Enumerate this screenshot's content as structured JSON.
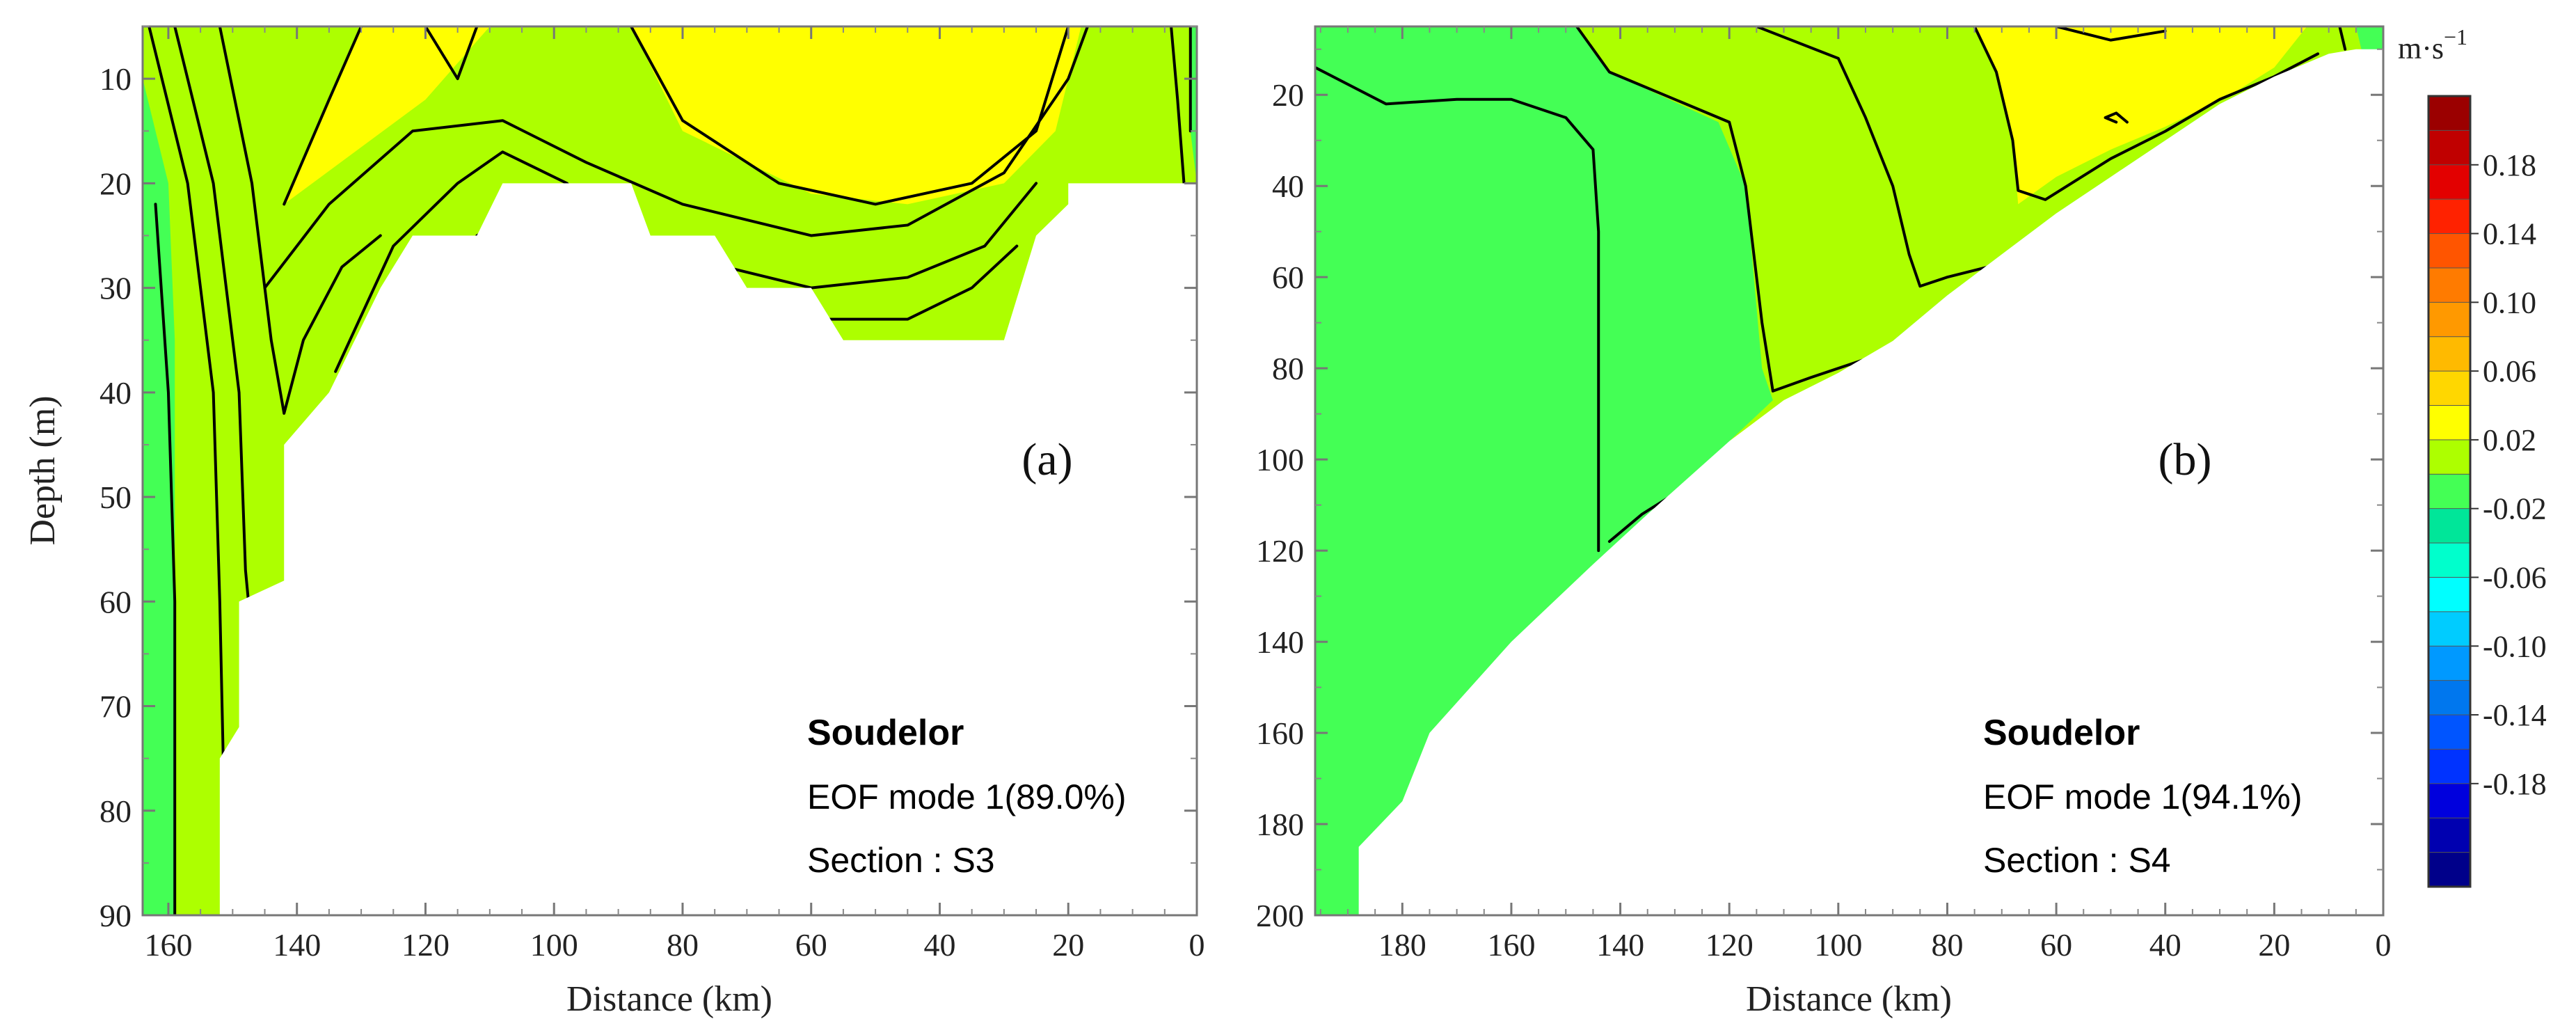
{
  "chart_data": [
    {
      "type": "heatmap",
      "panel_label": "(a)",
      "xlabel": "Distance (km)",
      "ylabel": "Depth (m)",
      "xlim": [
        164,
        0
      ],
      "ylim": [
        5,
        90
      ],
      "xticks": [
        "160",
        "140",
        "120",
        "100",
        "80",
        "60",
        "40",
        "20",
        "0"
      ],
      "xtick_values": [
        160,
        140,
        120,
        100,
        80,
        60,
        40,
        20,
        0
      ],
      "yticks": [
        "10",
        "20",
        "30",
        "40",
        "50",
        "60",
        "70",
        "80",
        "90"
      ],
      "ytick_values": [
        10,
        20,
        30,
        40,
        50,
        60,
        70,
        80,
        90
      ],
      "bottom_profile": [
        [
          164,
          90
        ],
        [
          152,
          90
        ],
        [
          152,
          75
        ],
        [
          149,
          72
        ],
        [
          149,
          60
        ],
        [
          142,
          58
        ],
        [
          142,
          45
        ],
        [
          135,
          40
        ],
        [
          127,
          30
        ],
        [
          122,
          25
        ],
        [
          112,
          25
        ],
        [
          108,
          20
        ],
        [
          88,
          20
        ],
        [
          85,
          25
        ],
        [
          75,
          25
        ],
        [
          70,
          30
        ],
        [
          60,
          30
        ],
        [
          55,
          35
        ],
        [
          30,
          35
        ],
        [
          25,
          25
        ],
        [
          20,
          22
        ],
        [
          20,
          20
        ],
        [
          0,
          20
        ]
      ],
      "regions": [
        {
          "level": "0.02 to 0.06",
          "color": "#adff00"
        },
        {
          "level": "0.06 to 0.10",
          "color": "#ffff00",
          "points": [
            [
              130,
              5
            ],
            [
              142,
              22
            ],
            [
              120,
              12
            ],
            [
              110,
              5
            ]
          ]
        },
        {
          "level": "0.06 to 0.10",
          "color": "#ffff00",
          "points": [
            [
              88,
              5
            ],
            [
              80,
              15
            ],
            [
              60,
              21
            ],
            [
              45,
              22
            ],
            [
              30,
              20
            ],
            [
              22,
              15
            ],
            [
              18,
              5
            ]
          ]
        },
        {
          "level": "-0.02 to 0.02",
          "color": "#44ff55",
          "points": [
            [
              164,
              10
            ],
            [
              160,
              20
            ],
            [
              159,
              35
            ],
            [
              159,
              90
            ],
            [
              164,
              90
            ]
          ]
        },
        {
          "level": "-0.02 to 0.02",
          "color": "#44ff55",
          "points": [
            [
              1,
              5
            ],
            [
              0,
              5
            ],
            [
              0,
              20
            ],
            [
              1,
              15
            ]
          ]
        }
      ],
      "contours": [
        [
          [
            162,
            22
          ],
          [
            160,
            40
          ],
          [
            159,
            60
          ],
          [
            159,
            90
          ]
        ],
        [
          [
            163,
            5
          ],
          [
            157,
            20
          ],
          [
            153,
            40
          ],
          [
            152,
            60
          ],
          [
            151,
            88
          ]
        ],
        [
          [
            159,
            5
          ],
          [
            153,
            20
          ],
          [
            149,
            40
          ],
          [
            148,
            57
          ],
          [
            146,
            70
          ],
          [
            148,
            75
          ]
        ],
        [
          [
            152,
            5
          ],
          [
            147,
            20
          ],
          [
            144,
            35
          ],
          [
            142,
            42
          ],
          [
            139,
            35
          ],
          [
            133,
            28
          ],
          [
            127,
            25
          ]
        ],
        [
          [
            142,
            22
          ],
          [
            135,
            12
          ],
          [
            130,
            5
          ]
        ],
        [
          [
            134,
            38
          ],
          [
            125,
            26
          ],
          [
            115,
            20
          ],
          [
            108,
            17
          ],
          [
            98,
            20
          ],
          [
            88,
            26
          ],
          [
            75,
            30
          ],
          [
            60,
            33
          ],
          [
            45,
            33
          ],
          [
            35,
            30
          ],
          [
            28,
            26
          ]
        ],
        [
          [
            112,
            25
          ],
          [
            100,
            21
          ],
          [
            90,
            24
          ],
          [
            80,
            27
          ],
          [
            60,
            30
          ],
          [
            45,
            29
          ],
          [
            33,
            26
          ],
          [
            25,
            20
          ]
        ],
        [
          [
            145,
            30
          ],
          [
            135,
            22
          ],
          [
            122,
            15
          ],
          [
            108,
            14
          ],
          [
            95,
            18
          ],
          [
            80,
            22
          ],
          [
            60,
            25
          ],
          [
            45,
            24
          ],
          [
            30,
            19
          ],
          [
            20,
            10
          ],
          [
            17,
            5
          ]
        ],
        [
          [
            120,
            5
          ],
          [
            115,
            10
          ],
          [
            112,
            5
          ]
        ],
        [
          [
            88,
            5
          ],
          [
            80,
            14
          ],
          [
            65,
            20
          ],
          [
            50,
            22
          ],
          [
            35,
            20
          ],
          [
            25,
            15
          ],
          [
            20,
            5
          ]
        ],
        [
          [
            4,
            5
          ],
          [
            3,
            12
          ],
          [
            2,
            20
          ]
        ],
        [
          [
            1,
            5
          ],
          [
            1,
            15
          ]
        ]
      ],
      "annotations": {
        "name": "Soudelor",
        "mode": "EOF mode 1(89.0%)",
        "section": "Section : S3"
      }
    },
    {
      "type": "heatmap",
      "panel_label": "(b)",
      "xlabel": "Distance (km)",
      "ylabel": "",
      "xlim": [
        196,
        0
      ],
      "ylim": [
        5,
        200
      ],
      "xticks": [
        "180",
        "160",
        "140",
        "120",
        "100",
        "80",
        "60",
        "40",
        "20",
        "0"
      ],
      "xtick_values": [
        180,
        160,
        140,
        120,
        100,
        80,
        60,
        40,
        20,
        0
      ],
      "yticks": [
        "20",
        "40",
        "60",
        "80",
        "100",
        "120",
        "140",
        "160",
        "180",
        "200"
      ],
      "ytick_values": [
        20,
        40,
        60,
        80,
        100,
        120,
        140,
        160,
        180,
        200
      ],
      "bottom_profile": [
        [
          196,
          200
        ],
        [
          188,
          200
        ],
        [
          188,
          185
        ],
        [
          180,
          175
        ],
        [
          175,
          160
        ],
        [
          160,
          140
        ],
        [
          145,
          123
        ],
        [
          135,
          112
        ],
        [
          120,
          96
        ],
        [
          110,
          87
        ],
        [
          100,
          81
        ],
        [
          90,
          74
        ],
        [
          80,
          64
        ],
        [
          70,
          55
        ],
        [
          60,
          46
        ],
        [
          50,
          38
        ],
        [
          40,
          30
        ],
        [
          30,
          22
        ],
        [
          20,
          16
        ],
        [
          10,
          11
        ],
        [
          5,
          10
        ],
        [
          0,
          10
        ]
      ],
      "regions": [
        {
          "level": "-0.02 to 0.02",
          "color": "#44ff55"
        },
        {
          "level": "0.02 to 0.06",
          "color": "#adff00",
          "points": [
            [
              148,
              5
            ],
            [
              142,
              15
            ],
            [
              122,
              26
            ],
            [
              117,
              40
            ],
            [
              114,
              80
            ],
            [
              112,
              87
            ],
            [
              120,
              96
            ],
            [
              96,
              80
            ],
            [
              80,
              64
            ],
            [
              70,
              55
            ],
            [
              60,
              46
            ],
            [
              50,
              38
            ],
            [
              40,
              30
            ],
            [
              30,
              22
            ],
            [
              20,
              16
            ],
            [
              10,
              11
            ],
            [
              4,
              10
            ],
            [
              5,
              5
            ]
          ]
        },
        {
          "level": "0.06 to 0.10",
          "color": "#ffff00",
          "points": [
            [
              75,
              5
            ],
            [
              71,
              15
            ],
            [
              68,
              30
            ],
            [
              67,
              44
            ],
            [
              60,
              38
            ],
            [
              50,
              32
            ],
            [
              40,
              27
            ],
            [
              28,
              20
            ],
            [
              20,
              14
            ],
            [
              14,
              5
            ]
          ]
        },
        {
          "level": "-0.02 to 0.02",
          "color": "#44ff55",
          "points": [
            [
              5,
              5
            ],
            [
              0,
              5
            ],
            [
              0,
              10
            ],
            [
              4,
              10
            ]
          ]
        }
      ],
      "contours": [
        [
          [
            196,
            14
          ],
          [
            183,
            22
          ],
          [
            170,
            21
          ],
          [
            160,
            21
          ],
          [
            150,
            25
          ],
          [
            145,
            32
          ],
          [
            144,
            50
          ],
          [
            144,
            90
          ],
          [
            144,
            120
          ]
        ],
        [
          [
            142,
            118
          ],
          [
            136,
            112
          ],
          [
            128,
            106
          ]
        ],
        [
          [
            148,
            5
          ],
          [
            142,
            15
          ],
          [
            120,
            26
          ],
          [
            117,
            40
          ],
          [
            114,
            70
          ],
          [
            112,
            85
          ],
          [
            105,
            82
          ],
          [
            95,
            78
          ]
        ],
        [
          [
            115,
            5
          ],
          [
            100,
            12
          ],
          [
            95,
            25
          ],
          [
            90,
            40
          ],
          [
            87,
            55
          ],
          [
            85,
            62
          ],
          [
            80,
            60
          ],
          [
            70,
            57
          ]
        ],
        [
          [
            75,
            5
          ],
          [
            71,
            15
          ],
          [
            68,
            30
          ],
          [
            67,
            41
          ],
          [
            62,
            43
          ],
          [
            50,
            34
          ],
          [
            40,
            28
          ],
          [
            30,
            21
          ],
          [
            20,
            16
          ],
          [
            12,
            11
          ]
        ],
        [
          [
            60,
            5
          ],
          [
            50,
            8
          ],
          [
            40,
            6
          ]
        ],
        [
          [
            49,
            26
          ],
          [
            51,
            25
          ],
          [
            49,
            24
          ],
          [
            47,
            26
          ]
        ],
        [
          [
            8,
            5
          ],
          [
            7,
            10
          ]
        ]
      ],
      "annotations": {
        "name": "Soudelor",
        "mode": "EOF mode 1(94.1%)",
        "section": "Section : S4"
      }
    }
  ],
  "colorbar": {
    "unit": "m·s",
    "unit_exponent": "−1",
    "labels": [
      "0.18",
      "0.14",
      "0.10",
      "0.06",
      "0.02",
      "-0.02",
      "-0.06",
      "-0.10",
      "-0.14",
      "-0.18"
    ],
    "colors": [
      "#9b0000",
      "#c00000",
      "#e30000",
      "#ff2200",
      "#ff5500",
      "#ff7b00",
      "#ff9900",
      "#ffba00",
      "#ffd700",
      "#ffff00",
      "#adff00",
      "#44ff55",
      "#00e699",
      "#00ffcc",
      "#00ffff",
      "#00ccff",
      "#0099ff",
      "#0077ee",
      "#0055ff",
      "#0033ff",
      "#0000dd",
      "#0000b0",
      "#00008a"
    ]
  }
}
